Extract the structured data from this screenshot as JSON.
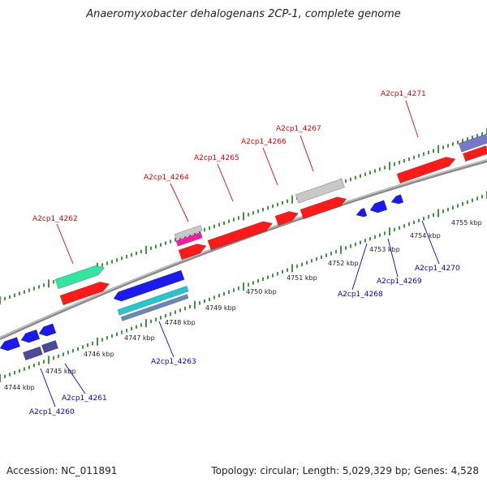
{
  "title": "Anaeromyxobacter dehalogenans 2CP-1, complete genome",
  "footer": {
    "accession": "Accession: NC_011891",
    "summary": "Topology: circular; Length: 5,029,329 bp; Genes: 4,528"
  },
  "colors": {
    "forward_label": "#e00000",
    "reverse_label": "#0000cc",
    "tick": "#2a8a2a",
    "backbone": "#8a8a8a",
    "red_gene": "#ff1a1a",
    "blue_gene": "#1a1aee",
    "grey_gene": "#c8c8c8",
    "green_gene": "#33e6a0",
    "magenta_gene": "#ff1aa8",
    "cyan_gene": "#22c8d0",
    "navy_gene": "#4a4a9a",
    "lavender_gene": "#7777cc"
  },
  "kbp_labels": [
    "4744 kbp",
    "4745 kbp",
    "4746 kbp",
    "4747 kbp",
    "4748 kbp",
    "4749 kbp",
    "4750 kbp",
    "4751 kbp",
    "4752 kbp",
    "4753 kbp",
    "4754 kbp",
    "4755 kbp"
  ],
  "forward_labels": [
    "A2cp1_4262",
    "A2cp1_4264",
    "A2cp1_4265",
    "A2cp1_4266",
    "A2cp1_4267",
    "A2cp1_4271"
  ],
  "reverse_labels": [
    "A2cp1_4260",
    "A2cp1_4261",
    "A2cp1_4263",
    "A2cp1_4268",
    "A2cp1_4269",
    "A2cp1_4270"
  ]
}
